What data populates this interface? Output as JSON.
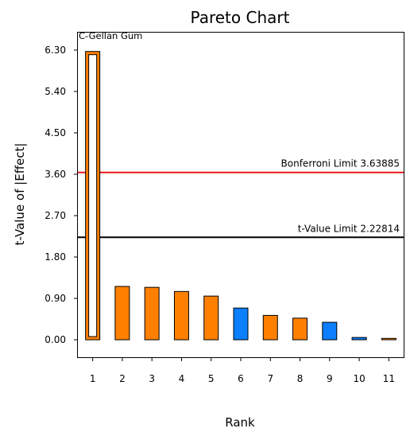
{
  "chart_data": {
    "type": "bar",
    "title": "Pareto Chart",
    "xlabel": "Rank",
    "ylabel": "t-Value of |Effect|",
    "categories": [
      "1",
      "2",
      "3",
      "4",
      "5",
      "6",
      "7",
      "8",
      "9",
      "10",
      "11"
    ],
    "values": [
      6.27,
      1.16,
      1.14,
      1.05,
      0.95,
      0.69,
      0.53,
      0.47,
      0.38,
      0.05,
      0.03
    ],
    "effect_sign": [
      "positive",
      "positive",
      "positive",
      "positive",
      "positive",
      "negative",
      "positive",
      "positive",
      "negative",
      "negative",
      "positive"
    ],
    "highlighted_bar": {
      "index": 0,
      "label": "C-Gellan Gum"
    },
    "ylim": [
      -0.38,
      6.68
    ],
    "yticks": [
      "0.00",
      "0.90",
      "1.80",
      "2.70",
      "3.60",
      "4.50",
      "5.40",
      "6.30"
    ],
    "reference_lines": [
      {
        "label": "Bonferroni Limit 3.63885",
        "value": 3.63885,
        "color": "#e8181b"
      },
      {
        "label": "t-Value Limit 2.22814",
        "value": 2.22814,
        "color": "#000000"
      }
    ],
    "colors": {
      "positive": "#ff8000",
      "negative": "#0b7ffd",
      "bar_outline": "#000000"
    },
    "grid": false,
    "legend": "none"
  }
}
